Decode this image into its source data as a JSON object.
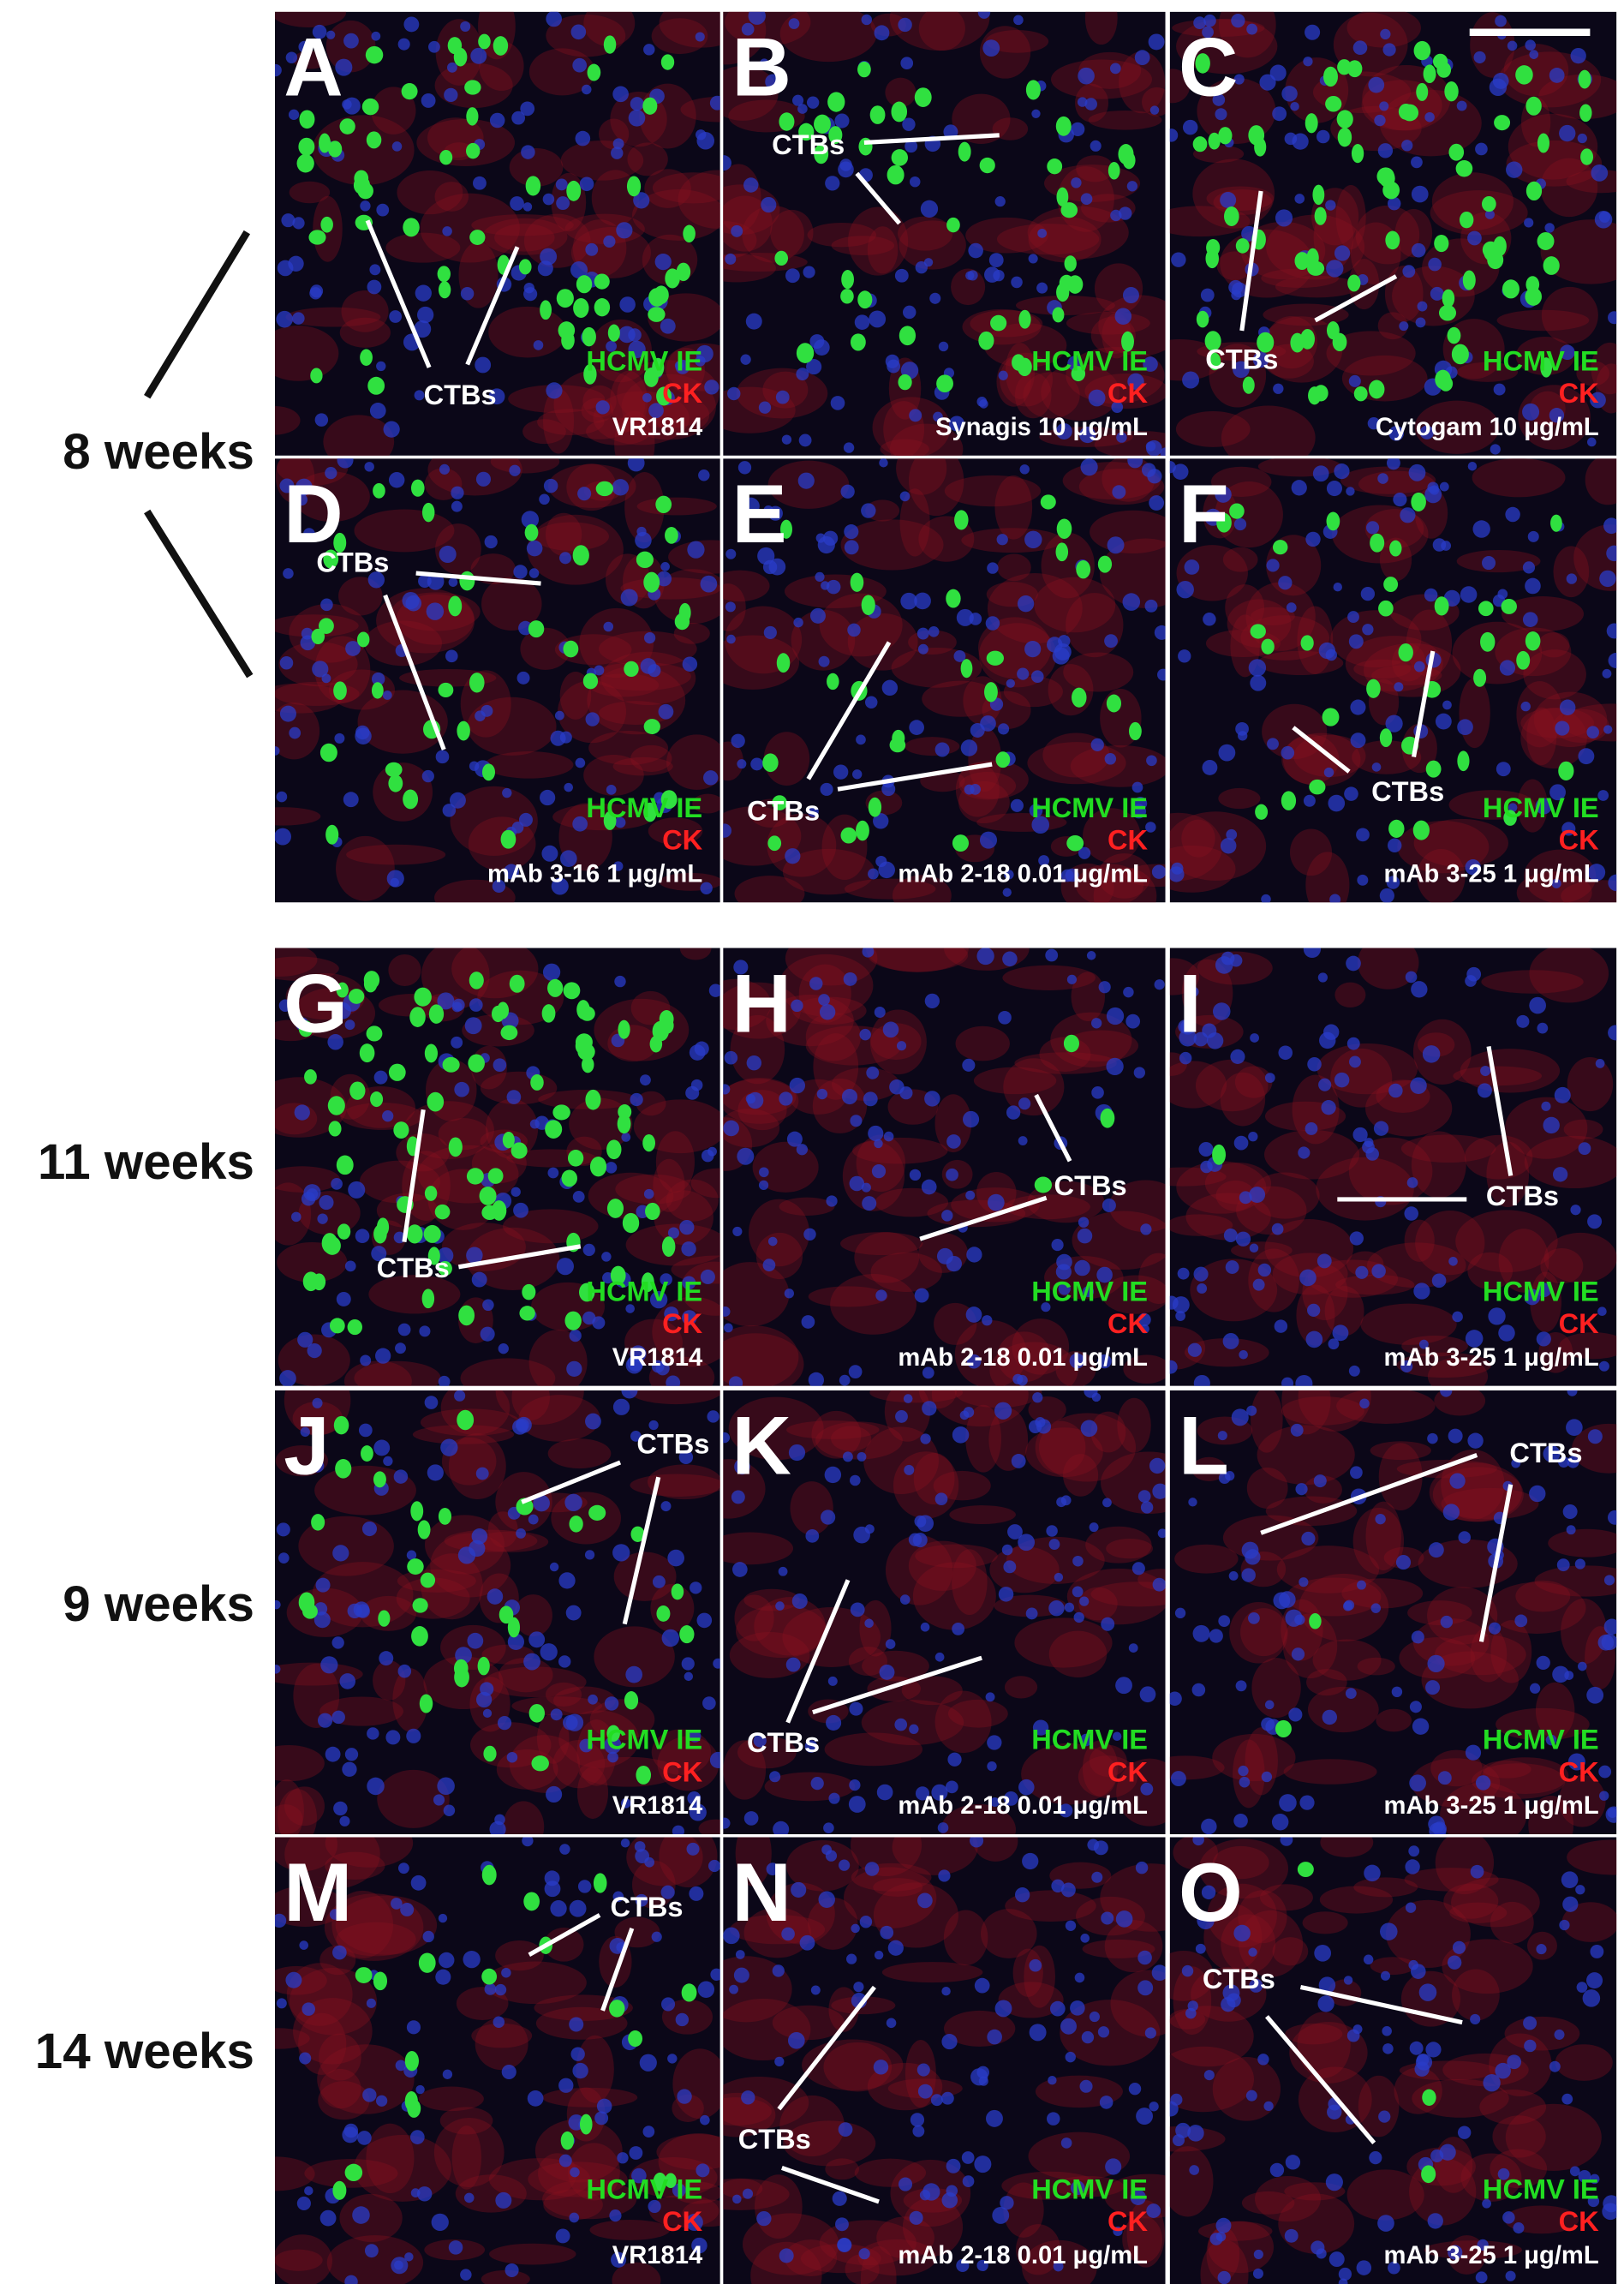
{
  "rows": [
    {
      "label": "8 weeks"
    },
    {
      "label": "11 weeks"
    },
    {
      "label": "9 weeks"
    },
    {
      "label": "14 weeks"
    }
  ],
  "panels": [
    {
      "letter": "A",
      "ctbs": "CTBs",
      "stain_1": "HCMV IE",
      "stain_2": "CK",
      "treatment": "VR1814"
    },
    {
      "letter": "B",
      "ctbs": "CTBs",
      "stain_1": "HCMV IE",
      "stain_2": "CK",
      "treatment": "Synagis 10 μg/mL"
    },
    {
      "letter": "C",
      "ctbs": "CTBs",
      "stain_1": "HCMV IE",
      "stain_2": "CK",
      "treatment": "Cytogam 10 μg/mL"
    },
    {
      "letter": "D",
      "ctbs": "CTBs",
      "stain_1": "HCMV IE",
      "stain_2": "CK",
      "treatment": "mAb 3-16 1 μg/mL"
    },
    {
      "letter": "E",
      "ctbs": "CTBs",
      "stain_1": "HCMV IE",
      "stain_2": "CK",
      "treatment": "mAb 2-18 0.01 μg/mL"
    },
    {
      "letter": "F",
      "ctbs": "CTBs",
      "stain_1": "HCMV IE",
      "stain_2": "CK",
      "treatment": "mAb 3-25 1 μg/mL"
    },
    {
      "letter": "G",
      "ctbs": "CTBs",
      "stain_1": "HCMV IE",
      "stain_2": "CK",
      "treatment": "VR1814"
    },
    {
      "letter": "H",
      "ctbs": "CTBs",
      "stain_1": "HCMV IE",
      "stain_2": "CK",
      "treatment": "mAb 2-18 0.01 μg/mL"
    },
    {
      "letter": "I",
      "ctbs": "CTBs",
      "stain_1": "HCMV IE",
      "stain_2": "CK",
      "treatment": "mAb 3-25 1 μg/mL"
    },
    {
      "letter": "J",
      "ctbs": "CTBs",
      "stain_1": "HCMV IE",
      "stain_2": "CK",
      "treatment": "VR1814"
    },
    {
      "letter": "K",
      "ctbs": "CTBs",
      "stain_1": "HCMV IE",
      "stain_2": "CK",
      "treatment": "mAb 2-18 0.01 μg/mL"
    },
    {
      "letter": "L",
      "ctbs": "CTBs",
      "stain_1": "HCMV IE",
      "stain_2": "CK",
      "treatment": "mAb 3-25 1 μg/mL"
    },
    {
      "letter": "M",
      "ctbs": "CTBs",
      "stain_1": "HCMV IE",
      "stain_2": "CK",
      "treatment": "VR1814"
    },
    {
      "letter": "N",
      "ctbs": "CTBs",
      "stain_1": "HCMV IE",
      "stain_2": "CK",
      "treatment": "mAb 2-18 0.01 μg/mL"
    },
    {
      "letter": "O",
      "ctbs": "CTBs",
      "stain_1": "HCMV IE",
      "stain_2": "CK",
      "treatment": "mAb 3-25 1 μg/mL"
    }
  ]
}
